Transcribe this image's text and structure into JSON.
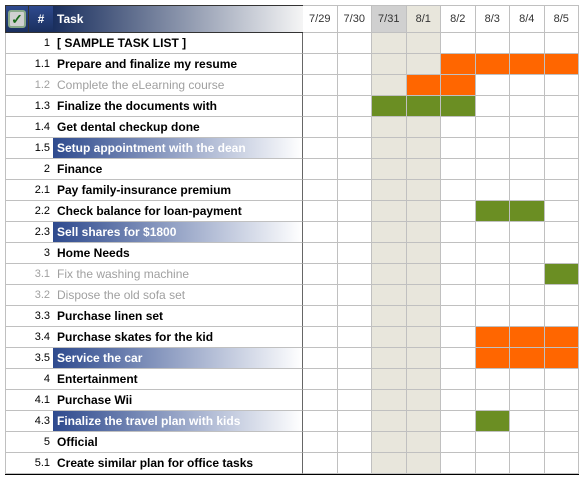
{
  "header": {
    "num_symbol": "#",
    "task_label": "Task",
    "dates": [
      "7/29",
      "7/30",
      "7/31",
      "8/1",
      "8/2",
      "8/3",
      "8/4",
      "8/5"
    ],
    "weekend_dark_idx": [
      2
    ],
    "weekend_light_idx": [
      3
    ]
  },
  "colors": {
    "orange": "#ff6600",
    "green": "#6b8e23",
    "header_grad_start": "#1a2f5e",
    "header_grad_end": "#f5f5f5",
    "highlight_grad_start": "#2e4a8e",
    "highlight_grad_end": "#ffffff",
    "completed_text": "#a0a0a0",
    "weekend_dark": "#d0d0d0",
    "weekend_light": "#e8e6dc"
  },
  "rows": [
    {
      "num": "1",
      "task": "[ SAMPLE TASK LIST ]",
      "style": "normal",
      "bars": []
    },
    {
      "num": "1.1",
      "task": "Prepare and finalize my resume",
      "style": "normal",
      "bars": [
        {
          "from": 4,
          "to": 7,
          "color": "orange"
        }
      ]
    },
    {
      "num": "1.2",
      "task": "Complete the eLearning course",
      "style": "completed",
      "bars": [
        {
          "from": 3,
          "to": 4,
          "color": "orange"
        }
      ]
    },
    {
      "num": "1.3",
      "task": "Finalize the documents with",
      "style": "normal",
      "bars": [
        {
          "from": 2,
          "to": 4,
          "color": "green"
        }
      ]
    },
    {
      "num": "1.4",
      "task": "Get dental checkup done",
      "style": "normal",
      "bars": []
    },
    {
      "num": "1.5",
      "task": "Setup appointment with the dean",
      "style": "highlight",
      "bars": []
    },
    {
      "num": "2",
      "task": "Finance",
      "style": "normal",
      "bars": []
    },
    {
      "num": "2.1",
      "task": "Pay family-insurance premium",
      "style": "normal",
      "bars": []
    },
    {
      "num": "2.2",
      "task": "Check balance for loan-payment",
      "style": "normal",
      "bars": [
        {
          "from": 5,
          "to": 6,
          "color": "green"
        }
      ]
    },
    {
      "num": "2.3",
      "task": "Sell shares for $1800",
      "style": "highlight",
      "bars": []
    },
    {
      "num": "3",
      "task": "Home Needs",
      "style": "normal",
      "bars": []
    },
    {
      "num": "3.1",
      "task": "Fix the washing machine",
      "style": "completed",
      "bars": [
        {
          "from": 7,
          "to": 7,
          "color": "green"
        }
      ]
    },
    {
      "num": "3.2",
      "task": "Dispose the old sofa set",
      "style": "completed",
      "bars": []
    },
    {
      "num": "3.3",
      "task": "Purchase linen set",
      "style": "normal",
      "bars": []
    },
    {
      "num": "3.4",
      "task": "Purchase skates for the kid",
      "style": "normal",
      "bars": [
        {
          "from": 5,
          "to": 7,
          "color": "orange"
        }
      ]
    },
    {
      "num": "3.5",
      "task": "Service the car",
      "style": "highlight",
      "bars": [
        {
          "from": 5,
          "to": 7,
          "color": "orange"
        }
      ]
    },
    {
      "num": "4",
      "task": "Entertainment",
      "style": "normal",
      "bars": []
    },
    {
      "num": "4.1",
      "task": "Purchase Wii",
      "style": "normal",
      "bars": []
    },
    {
      "num": "4.3",
      "task": "Finalize the travel plan with kids",
      "style": "highlight",
      "bars": [
        {
          "from": 5,
          "to": 5,
          "color": "green"
        }
      ]
    },
    {
      "num": "5",
      "task": "Official",
      "style": "normal",
      "bars": []
    },
    {
      "num": "5.1",
      "task": "Create similar plan for office tasks",
      "style": "normal",
      "bars": []
    }
  ]
}
